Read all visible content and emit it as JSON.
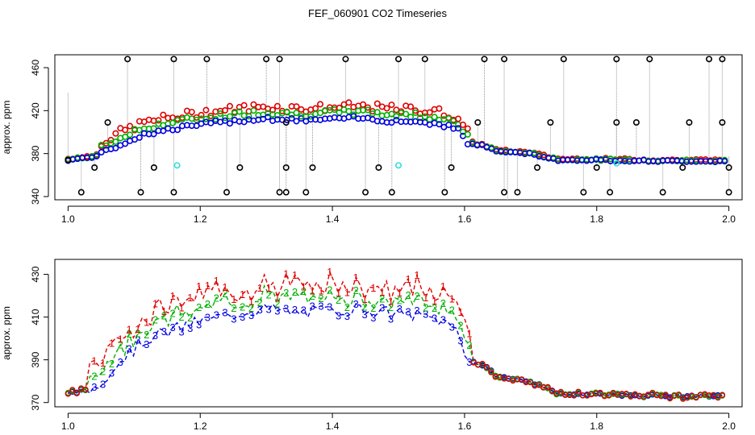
{
  "page_title": "FEF_060901  CO2 Timeseries",
  "chart_data": [
    {
      "type": "scatter",
      "panel": "top",
      "title": "FEF_060901  CO2 Timeseries",
      "xlabel": "",
      "ylabel": "approx. ppm",
      "xlim": [
        0.98,
        2.02
      ],
      "ylim": [
        337,
        472
      ],
      "x_ticks": [
        1.0,
        1.2,
        1.4,
        1.6,
        1.8,
        2.0
      ],
      "x_tick_labels": [
        "1.0",
        "1.2",
        "1.4",
        "1.6",
        "1.8",
        "2.0"
      ],
      "y_ticks": [
        340,
        380,
        420,
        460
      ],
      "y_tick_labels": [
        "340",
        "380",
        "420",
        "460"
      ],
      "colors": {
        "raw": "#000000",
        "series1": "#e00000",
        "series2": "#00b000",
        "series3": "#0000e0",
        "flag": "#33dddd",
        "link": "#999999"
      },
      "outliers_high": [
        1.09,
        1.16,
        1.21,
        1.3,
        1.32,
        1.42,
        1.5,
        1.54,
        1.63,
        1.66,
        1.75,
        1.83,
        1.88,
        1.97,
        1.99
      ],
      "outliers_low": [
        1.02,
        1.11,
        1.16,
        1.24,
        1.32,
        1.33,
        1.36,
        1.45,
        1.49,
        1.57,
        1.66,
        1.68,
        1.78,
        1.82,
        1.9,
        2.0
      ],
      "outliers_mid": [
        1.04,
        1.13,
        1.26,
        1.33,
        1.37,
        1.47,
        1.58,
        1.71,
        1.8,
        1.93,
        2.0
      ],
      "outliers_upper": [
        1.06,
        1.33,
        1.62,
        1.73,
        1.83,
        1.86,
        1.94,
        1.99
      ],
      "flag_points": [
        [
          1.165,
          369
        ],
        [
          1.5,
          369
        ],
        [
          1.83,
          371
        ]
      ],
      "series": [
        {
          "name": "1",
          "color": "#e00000"
        },
        {
          "name": "2",
          "color": "#00b000"
        },
        {
          "name": "3",
          "color": "#0000e0"
        }
      ]
    },
    {
      "type": "line",
      "panel": "bottom",
      "xlabel": "",
      "ylabel": "approx. ppm",
      "xlim": [
        0.98,
        2.02
      ],
      "ylim": [
        368,
        437
      ],
      "x_ticks": [
        1.0,
        1.2,
        1.4,
        1.6,
        1.8,
        2.0
      ],
      "x_tick_labels": [
        "1.0",
        "1.2",
        "1.4",
        "1.6",
        "1.8",
        "2.0"
      ],
      "y_ticks": [
        370,
        390,
        410,
        430
      ],
      "y_tick_labels": [
        "370",
        "390",
        "410",
        "430"
      ],
      "series": [
        {
          "name": "1",
          "color": "#e00000"
        },
        {
          "name": "2",
          "color": "#00b000"
        },
        {
          "name": "3",
          "color": "#0000e0"
        }
      ],
      "baseline_knots": [
        [
          1.0,
          374
        ],
        [
          1.04,
          377
        ],
        [
          1.08,
          390
        ],
        [
          1.12,
          400
        ],
        [
          1.16,
          404
        ],
        [
          1.2,
          408
        ],
        [
          1.26,
          412
        ],
        [
          1.3,
          414
        ],
        [
          1.34,
          412
        ],
        [
          1.4,
          413
        ],
        [
          1.44,
          414
        ],
        [
          1.48,
          412
        ],
        [
          1.52,
          411
        ],
        [
          1.56,
          409
        ],
        [
          1.59,
          404
        ],
        [
          1.605,
          390
        ],
        [
          1.63,
          387
        ],
        [
          1.65,
          382
        ],
        [
          1.7,
          380
        ],
        [
          1.74,
          374
        ],
        [
          1.8,
          374
        ],
        [
          1.9,
          373
        ],
        [
          1.99,
          373
        ]
      ]
    }
  ]
}
